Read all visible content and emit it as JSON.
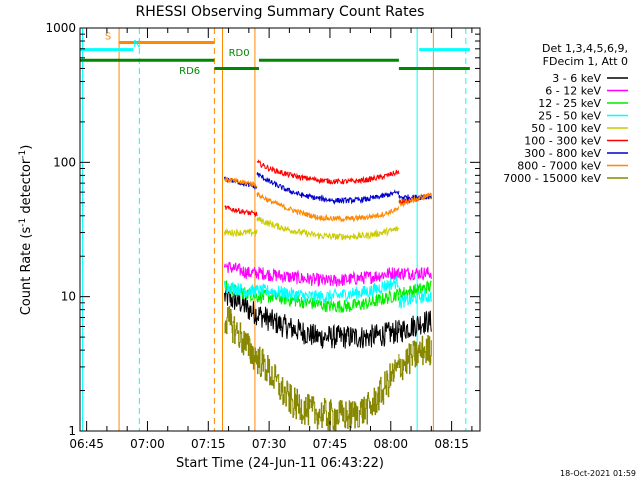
{
  "chart_data": {
    "type": "line",
    "title": "RHESSI Observing Summary Count Rates",
    "xlabel": "Start Time (24-Jun-11 06:43:22)",
    "ylabel": "Count Rate (s^-1 detector^-1)",
    "ylabel_main": "Count Rate (s",
    "ylabel_sup": "-1",
    "ylabel_mid": " detector",
    "ylabel_sup2": "-1",
    "ylabel_end": ")",
    "y_scale": "log",
    "ylim": [
      1,
      1000
    ],
    "xlim": [
      "06:43:22",
      "08:22:00"
    ],
    "x_ticks": [
      "06:45",
      "07:00",
      "07:15",
      "07:30",
      "07:45",
      "08:00",
      "08:15"
    ],
    "y_ticks": [
      "1",
      "10",
      "100",
      "1000"
    ],
    "legend": {
      "placement": "right",
      "header": [
        "Det 1,3,4,5,6,9,",
        "FDecim 1, Att 0"
      ],
      "entries": [
        {
          "label": "3 - 6 keV",
          "color": "#000000"
        },
        {
          "label": "6 - 12 keV",
          "color": "#ff00ff"
        },
        {
          "label": "12 - 25 keV",
          "color": "#00ee00"
        },
        {
          "label": "25 - 50 keV",
          "color": "#00ffff"
        },
        {
          "label": "50 - 100 keV",
          "color": "#cccc00"
        },
        {
          "label": "100 - 300 keV",
          "color": "#ff0000"
        },
        {
          "label": "300 - 800 keV",
          "color": "#0000cc"
        },
        {
          "label": "800 - 7000 keV",
          "color": "#ff8800"
        },
        {
          "label": "7000 - 15000 keV",
          "color": "#888800"
        }
      ]
    },
    "flags": [
      {
        "label": "S",
        "color": "#ff8800",
        "segments": [
          [
            "06:53:00",
            "07:16:30"
          ]
        ],
        "y": 780
      },
      {
        "label": "N",
        "color": "#00ffff",
        "segments": [
          [
            "06:43:22",
            "06:56:30"
          ],
          [
            "08:07:00",
            "08:19:30"
          ]
        ],
        "y": 690
      },
      {
        "label": "RD0",
        "color": "#008800",
        "segments": [
          [
            "06:43:22",
            "07:16:30"
          ],
          [
            "07:27:30",
            "08:02:00"
          ]
        ],
        "y": 575
      },
      {
        "label": "RD6",
        "color": "#008800",
        "segments": [
          [
            "07:16:30",
            "07:27:30"
          ],
          [
            "08:02:00",
            "08:19:30"
          ]
        ],
        "y": 500
      }
    ],
    "vertical_lines": [
      {
        "time": "06:44:00",
        "color": "#00ffff",
        "style": "solid"
      },
      {
        "time": "06:53:00",
        "color": "#ff8800",
        "style": "solid"
      },
      {
        "time": "06:58:00",
        "color": "#00ffff",
        "style": "dashed"
      },
      {
        "time": "07:16:30",
        "color": "#ff8800",
        "style": "dashed"
      },
      {
        "time": "07:18:30",
        "color": "#ff8800",
        "style": "solid"
      },
      {
        "time": "07:26:30",
        "color": "#ff8800",
        "style": "solid"
      },
      {
        "time": "08:06:30",
        "color": "#00ffff",
        "style": "solid"
      },
      {
        "time": "08:10:30",
        "color": "#ff8800",
        "style": "solid"
      },
      {
        "time": "08:18:30",
        "color": "#00ffff",
        "style": "dashed"
      }
    ],
    "series": [
      {
        "name": "3 - 6 keV",
        "color": "#000000",
        "segments": [
          {
            "t": [
              "07:19:00",
              "07:21:00",
              "07:23:00",
              "07:25:00",
              "07:27:00",
              "07:29:00",
              "07:31:00",
              "07:34:00",
              "07:38:00",
              "07:42:00",
              "07:46:00",
              "07:50:00",
              "07:54:00",
              "07:58:00",
              "08:02:00"
            ],
            "v": [
              10,
              9.5,
              9,
              8,
              7.5,
              7,
              6.5,
              6,
              5.5,
              5,
              5,
              5,
              5,
              5.2,
              5.5
            ]
          },
          {
            "t": [
              "08:02:00",
              "08:05:00",
              "08:08:00",
              "08:10:00"
            ],
            "v": [
              5.5,
              6,
              6.5,
              6.5
            ]
          }
        ]
      },
      {
        "name": "6 - 12 keV",
        "color": "#ff00ff",
        "segments": [
          {
            "t": [
              "07:19:00",
              "07:22:00",
              "07:25:00",
              "07:28:00",
              "07:31:00",
              "07:35:00",
              "07:40:00",
              "07:45:00",
              "07:50:00",
              "07:55:00",
              "08:00:00",
              "08:02:00"
            ],
            "v": [
              17,
              16,
              15,
              15,
              14.5,
              14,
              13.5,
              13,
              13.5,
              14,
              15,
              15
            ]
          },
          {
            "t": [
              "08:02:00",
              "08:05:00",
              "08:08:00",
              "08:10:00"
            ],
            "v": [
              15,
              15,
              15,
              15
            ]
          }
        ]
      },
      {
        "name": "12 - 25 keV",
        "color": "#00ee00",
        "segments": [
          {
            "t": [
              "07:19:00",
              "07:22:00",
              "07:25:00",
              "07:28:00",
              "07:31:00",
              "07:35:00",
              "07:40:00",
              "07:45:00",
              "07:50:00",
              "07:55:00",
              "08:00:00",
              "08:02:00"
            ],
            "v": [
              12,
              11,
              10.5,
              10,
              10,
              9.5,
              9,
              8.5,
              8.5,
              9,
              10,
              10.5
            ]
          },
          {
            "t": [
              "08:02:00",
              "08:05:00",
              "08:08:00",
              "08:10:00"
            ],
            "v": [
              10.5,
              11,
              11.5,
              12
            ]
          }
        ]
      },
      {
        "name": "25 - 50 keV",
        "color": "#00ffff",
        "segments": [
          {
            "t": [
              "07:19:00",
              "07:22:00",
              "07:25:00",
              "07:28:00",
              "07:31:00",
              "07:35:00",
              "07:40:00",
              "07:45:00",
              "07:50:00",
              "07:55:00",
              "08:00:00",
              "08:02:00"
            ],
            "v": [
              12,
              11.5,
              11,
              11,
              11,
              10.5,
              10,
              10,
              10.5,
              11,
              12.5,
              13
            ]
          },
          {
            "t": [
              "08:02:00",
              "08:05:00",
              "08:08:00",
              "08:10:00"
            ],
            "v": [
              9,
              9.5,
              10,
              10
            ]
          }
        ]
      },
      {
        "name": "50 - 100 keV",
        "color": "#cccc00",
        "segments": [
          {
            "t": [
              "07:19:00",
              "07:22:00",
              "07:25:00",
              "07:27:00"
            ],
            "v": [
              30,
              30,
              30,
              30
            ]
          },
          {
            "t": [
              "07:27:00",
              "07:30:00",
              "07:34:00",
              "07:38:00",
              "07:42:00",
              "07:46:00",
              "07:50:00",
              "07:54:00",
              "07:58:00",
              "08:02:00"
            ],
            "v": [
              38,
              35,
              32,
              30,
              28.5,
              28,
              28,
              28.5,
              30,
              32
            ]
          },
          {
            "t": [
              "08:02:00",
              "08:05:00",
              "08:08:00",
              "08:10:00"
            ],
            "v": [
              52,
              53,
              55,
              56
            ]
          }
        ]
      },
      {
        "name": "100 - 300 keV",
        "color": "#ff0000",
        "segments": [
          {
            "t": [
              "07:19:00",
              "07:22:00",
              "07:25:00",
              "07:27:00"
            ],
            "v": [
              46,
              44,
              42,
              41
            ]
          },
          {
            "t": [
              "07:27:00",
              "07:30:00",
              "07:34:00",
              "07:38:00",
              "07:42:00",
              "07:46:00",
              "07:50:00",
              "07:54:00",
              "07:58:00",
              "08:02:00"
            ],
            "v": [
              100,
              90,
              82,
              77,
              74,
              72,
              72,
              74,
              78,
              85
            ]
          },
          {
            "t": [
              "08:02:00",
              "08:05:00",
              "08:08:00",
              "08:10:00"
            ],
            "v": [
              50,
              52,
              55,
              56
            ]
          }
        ]
      },
      {
        "name": "300 - 800 keV",
        "color": "#0000cc",
        "segments": [
          {
            "t": [
              "07:19:00",
              "07:22:00",
              "07:25:00",
              "07:27:00"
            ],
            "v": [
              75,
              72,
              68,
              65
            ]
          },
          {
            "t": [
              "07:27:00",
              "07:30:00",
              "07:34:00",
              "07:38:00",
              "07:42:00",
              "07:46:00",
              "07:50:00",
              "07:54:00",
              "07:58:00",
              "08:02:00"
            ],
            "v": [
              82,
              72,
              63,
              57,
              54,
              52,
              52,
              53,
              56,
              60
            ]
          },
          {
            "t": [
              "08:02:00",
              "08:05:00",
              "08:08:00",
              "08:10:00"
            ],
            "v": [
              55,
              55,
              55,
              56
            ]
          }
        ]
      },
      {
        "name": "800 - 7000 keV",
        "color": "#ff8800",
        "segments": [
          {
            "t": [
              "07:19:00",
              "07:22:00",
              "07:25:00",
              "07:27:00"
            ],
            "v": [
              75,
              72,
              70,
              68
            ]
          },
          {
            "t": [
              "07:27:00",
              "07:30:00",
              "07:34:00",
              "07:38:00",
              "07:42:00",
              "07:46:00",
              "07:50:00",
              "07:54:00",
              "07:58:00",
              "08:02:00"
            ],
            "v": [
              58,
              52,
              46,
              42,
              39,
              38,
              38,
              39,
              41,
              45
            ]
          },
          {
            "t": [
              "08:02:00",
              "08:05:00",
              "08:08:00",
              "08:10:00"
            ],
            "v": [
              48,
              52,
              55,
              58
            ]
          }
        ]
      },
      {
        "name": "7000 - 15000 keV",
        "color": "#888800",
        "segments": [
          {
            "t": [
              "07:19:00",
              "07:21:00",
              "07:23:00",
              "07:25:00",
              "07:27:00",
              "07:29:00",
              "07:31:00",
              "07:33:00",
              "07:36:00",
              "07:40:00",
              "07:45:00",
              "07:50:00",
              "07:55:00",
              "07:58:00",
              "08:00:00",
              "08:02:00"
            ],
            "v": [
              7,
              6,
              5,
              4,
              3.5,
              3,
              2.5,
              2,
              1.6,
              1.4,
              1.3,
              1.3,
              1.5,
              2,
              2.5,
              3
            ]
          },
          {
            "t": [
              "08:02:00",
              "08:05:00",
              "08:08:00",
              "08:10:00"
            ],
            "v": [
              3,
              3.5,
              4,
              4
            ]
          }
        ]
      }
    ]
  },
  "footer": {
    "timestamp": "18-Oct-2021 01:59"
  }
}
